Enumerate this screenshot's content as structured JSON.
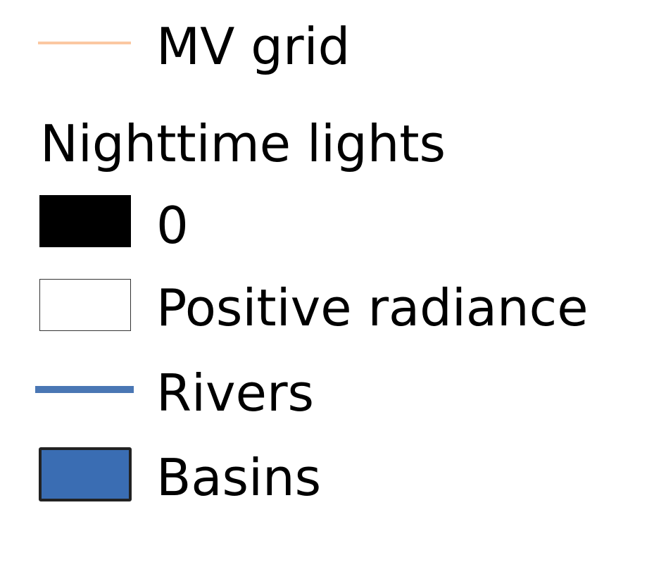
{
  "legend": {
    "mv_grid": {
      "label": "MV grid",
      "color": "#fbc8a2"
    },
    "nighttime_lights": {
      "title": "Nighttime lights",
      "zero": {
        "label": "0",
        "color": "#000000"
      },
      "positive": {
        "label": "Positive radiance",
        "color": "#ffffff",
        "border": "#333333"
      }
    },
    "rivers": {
      "label": "Rivers",
      "color": "#4a77b4"
    },
    "basins": {
      "label": "Basins",
      "fill": "#3a6db3",
      "border": "#222222"
    }
  }
}
